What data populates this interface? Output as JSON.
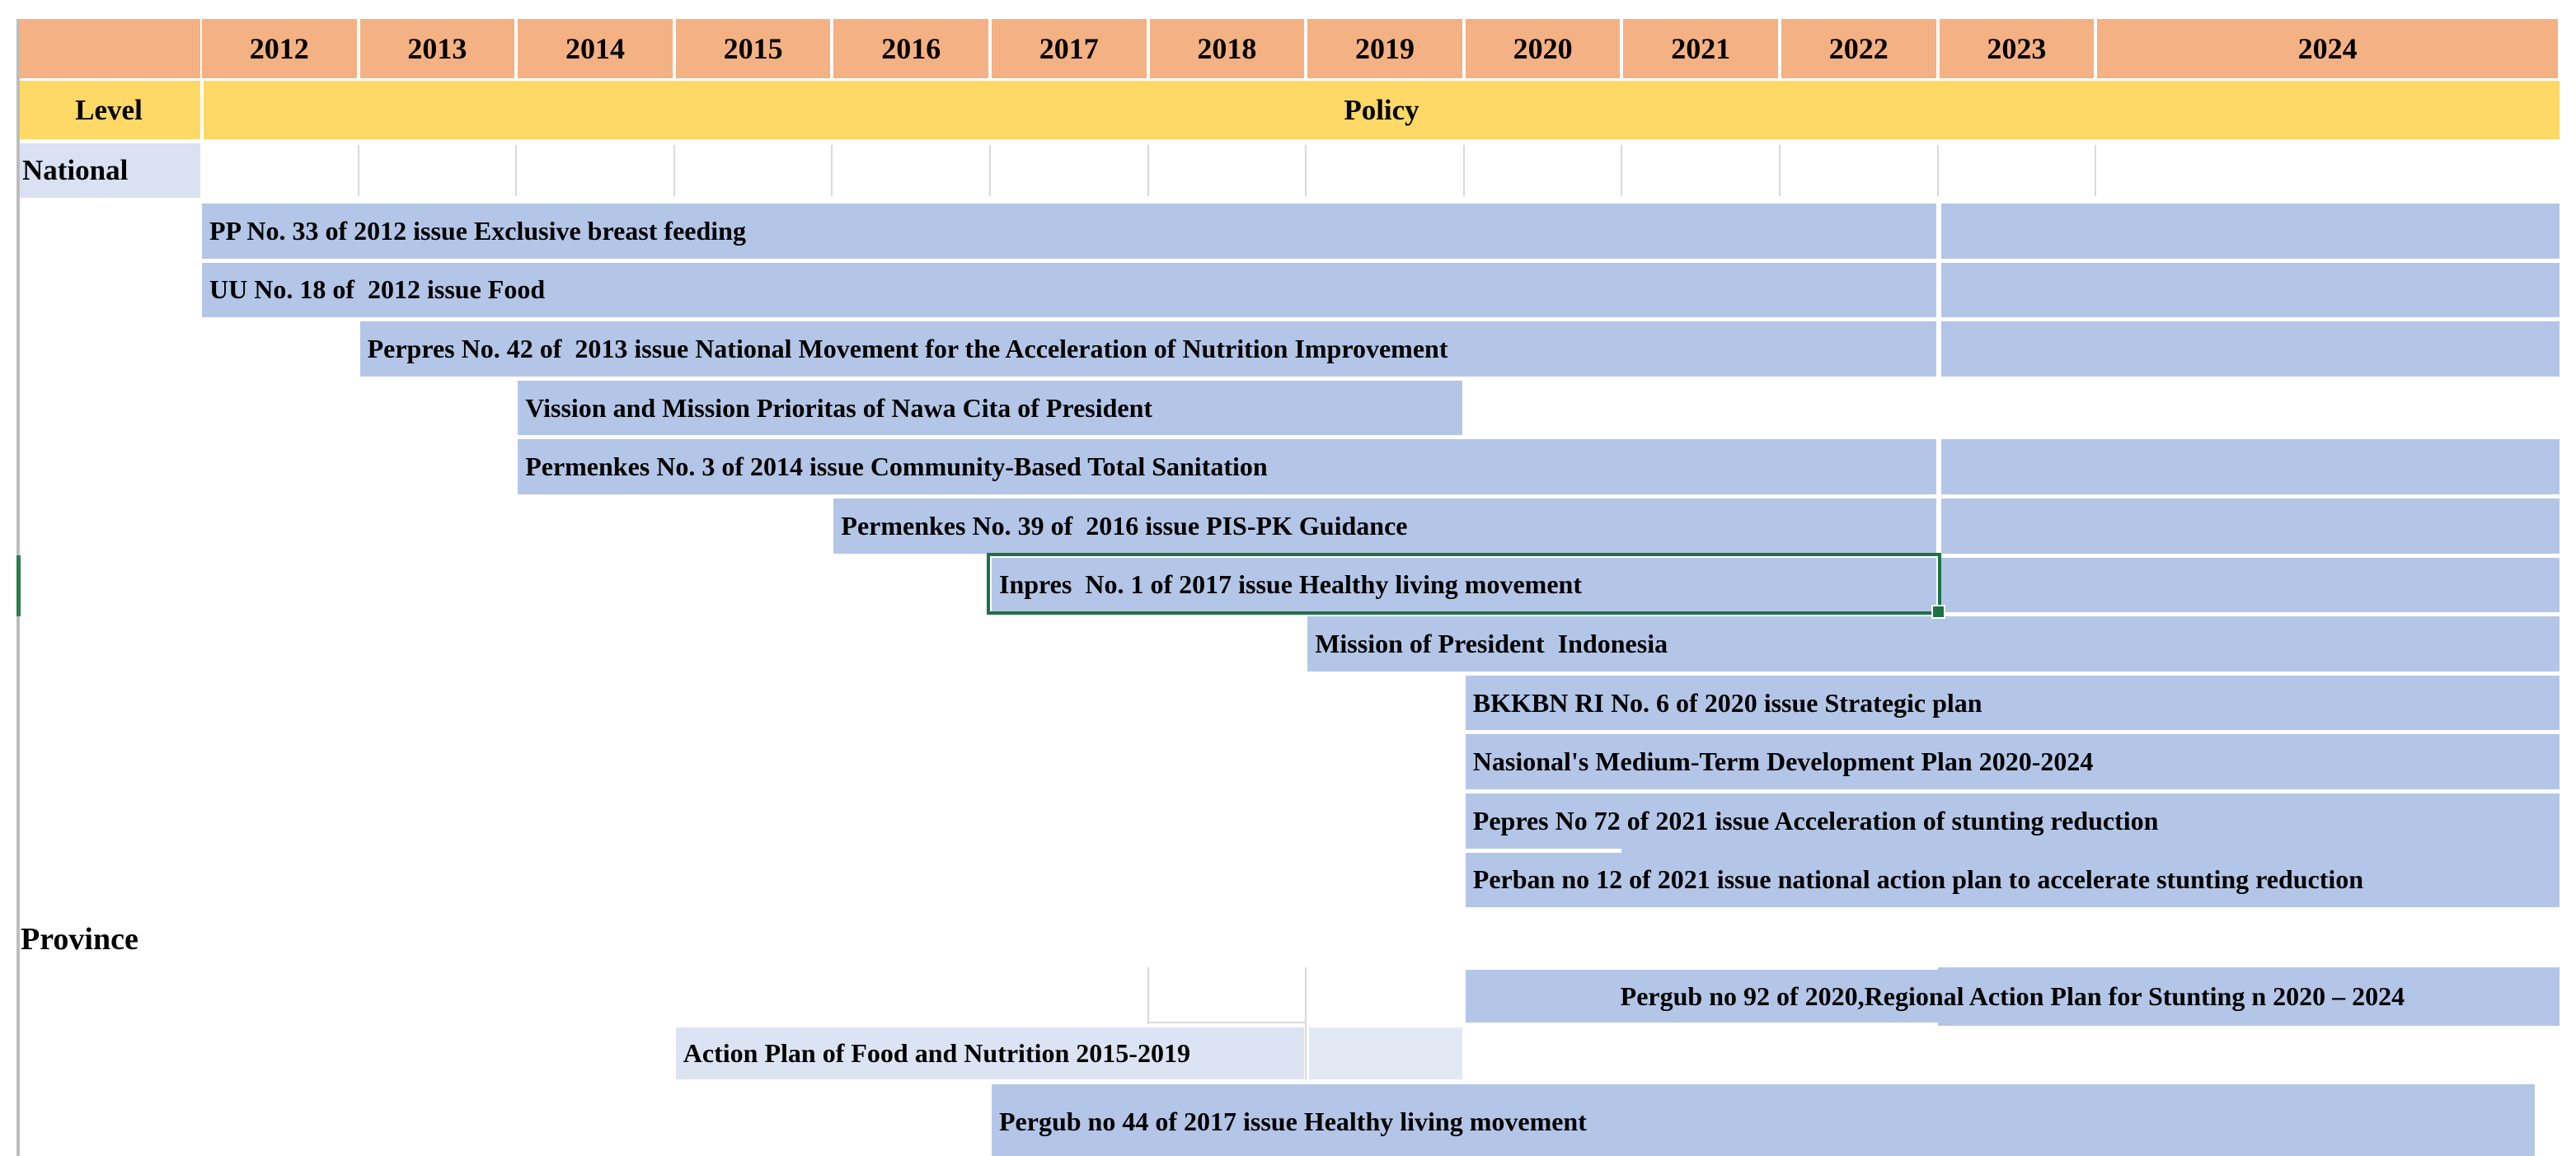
{
  "app": {
    "kind": "spreadsheet timeline figure of stunting-related policies"
  },
  "colors": {
    "header_orange": "#F4B183",
    "level_yellow": "#FFD966",
    "bar_blue": "#B4C6E7",
    "bar_light": "#DCE3F2",
    "bar_lighter": "#E3E8F5",
    "light_cell": "#D9E1F2",
    "selection_green": "#1F7145",
    "gridline_gray": "#D9D9D9"
  },
  "labels": {
    "level": "Level",
    "policy": "Policy",
    "national": "National",
    "province": "Province"
  },
  "selection": {
    "selected_cell_label": "Inpres  No. 1 of 2017 issue Healthy living movement"
  },
  "chart_data": {
    "type": "gantt-timeline",
    "title": "Policy timeline by level (National / Province), 2012-2024",
    "x_categories": [
      "2012",
      "2013",
      "2014",
      "2015",
      "2016",
      "2017",
      "2018",
      "2019",
      "2020",
      "2021",
      "2022",
      "2023",
      "2024"
    ],
    "x_range": [
      2012,
      2025
    ],
    "row_groups": [
      "National",
      "Province"
    ],
    "bars": [
      {
        "level": "National",
        "row": 0,
        "start": 2012,
        "end": 2023,
        "tail": true,
        "label": "PP No. 33 of 2012 issue Exclusive breast feeding"
      },
      {
        "level": "National",
        "row": 1,
        "start": 2012,
        "end": 2023,
        "tail": true,
        "label": "UU No. 18 of  2012 issue Food"
      },
      {
        "level": "National",
        "row": 2,
        "start": 2013,
        "end": 2023,
        "tail": true,
        "label": "Perpres No. 42 of  2013 issue National Movement for the Acceleration of Nutrition Improvement"
      },
      {
        "level": "National",
        "row": 3,
        "start": 2014,
        "end": 2020,
        "tail": false,
        "label": "Vission and Mission Prioritas of Nawa Cita of President"
      },
      {
        "level": "National",
        "row": 4,
        "start": 2014,
        "end": 2023,
        "tail": true,
        "label": "Permenkes No. 3 of 2014 issue Community-Based Total Sanitation"
      },
      {
        "level": "National",
        "row": 5,
        "start": 2016,
        "end": 2023,
        "tail": true,
        "label": "Permenkes No. 39 of  2016 issue PIS-PK Guidance"
      },
      {
        "level": "National",
        "row": 6,
        "start": 2017,
        "end": 2023,
        "tail": true,
        "selected": true,
        "label": "Inpres  No. 1 of 2017 issue Healthy living movement"
      },
      {
        "level": "National",
        "row": 7,
        "start": 2019,
        "end": 2025,
        "label": "Mission of President  Indonesia"
      },
      {
        "level": "National",
        "row": 8,
        "start": 2020,
        "end": 2025,
        "label": "BKKBN RI No. 6 of 2020 issue Strategic plan"
      },
      {
        "level": "National",
        "row": 9,
        "start": 2020,
        "end": 2025,
        "label": "Nasional's Medium-Term Development Plan 2020-2024"
      },
      {
        "level": "National",
        "row": 10,
        "start": 2020,
        "end": 2025,
        "fuse_below_from": 2021,
        "label": "Pepres No 72 of 2021 issue Acceleration of stunting reduction"
      },
      {
        "level": "National",
        "row": 11,
        "start": 2020,
        "end": 2025,
        "label": "Perban no 12 of 2021 issue national action plan to accelerate stunting reduction"
      },
      {
        "level": "Province",
        "row": 0,
        "start": 2020,
        "end": 2025,
        "align": "center",
        "step_tail_at": 2023,
        "label": "Pergub no 92 of 2020,Regional Action Plan for Stunting n 2020 – 2024"
      },
      {
        "level": "Province",
        "row": 1,
        "start": 2015,
        "end": 2019,
        "shade": "light",
        "extra_cell": {
          "start": 2019,
          "end": 2020
        },
        "label": "Action Plan of Food and Nutrition 2015-2019"
      },
      {
        "level": "Province",
        "row": 2,
        "start": 2017,
        "end": 2024.95,
        "label": "Pergub no 44 of 2017 issue Healthy living movement"
      }
    ]
  }
}
